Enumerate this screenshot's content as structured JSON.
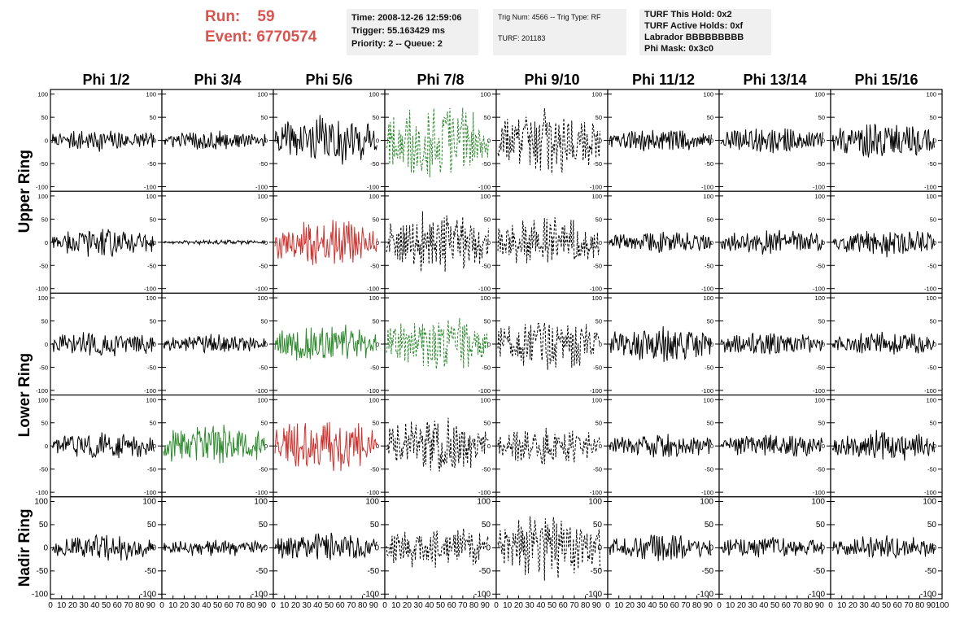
{
  "header": {
    "run_label": "Run:",
    "run_value": "59",
    "event_label": "Event:",
    "event_value": "6770574",
    "time": "Time: 2008-12-26 12:59:06",
    "trigger": "Trigger: 55.163429 ms",
    "priority": "Priority: 2 -- Queue: 2",
    "trig_num": "Trig Num: 4566 -- Trig Type: RF",
    "turf": "TURF: 201183",
    "turf_this_hold": "TURF This Hold: 0x2",
    "turf_active_holds": "TURF Active Holds: 0xf",
    "labrador": "Labrador BBBBBBBBB",
    "phi_mask": "Phi Mask: 0x3c0"
  },
  "chart_data": {
    "type": "line",
    "columns": [
      "Phi 1/2",
      "Phi 3/4",
      "Phi 5/6",
      "Phi 7/8",
      "Phi 9/10",
      "Phi 11/12",
      "Phi 13/14",
      "Phi 15/16"
    ],
    "row_groups": [
      "Upper Ring",
      "Lower Ring",
      "Nadir Ring"
    ],
    "rows": 5,
    "ylim": [
      -110,
      110
    ],
    "yticks": [
      "100",
      "50",
      "0",
      "-50",
      "-100"
    ],
    "xlim": [
      0,
      100
    ],
    "xticks": [
      "0",
      "10",
      "20",
      "30",
      "40",
      "50",
      "60",
      "70",
      "80",
      "90",
      "100"
    ],
    "grid": false,
    "colors": {
      "triggered": "#2b8a2b",
      "highlight": "#d0312d",
      "normal": "#000000"
    },
    "panels": [
      [
        {
          "a": 18,
          "c": "black",
          "d": false
        },
        {
          "a": 16,
          "c": "black",
          "d": false
        },
        {
          "a": 40,
          "c": "black",
          "d": false
        },
        {
          "a": 60,
          "c": "green",
          "d": true
        },
        {
          "a": 55,
          "c": "black",
          "d": true
        },
        {
          "a": 18,
          "c": "black",
          "d": false
        },
        {
          "a": 22,
          "c": "black",
          "d": false
        },
        {
          "a": 30,
          "c": "black",
          "d": false
        }
      ],
      [
        {
          "a": 25,
          "c": "black",
          "d": false
        },
        {
          "a": 4,
          "c": "black",
          "d": false
        },
        {
          "a": 40,
          "c": "red",
          "d": false
        },
        {
          "a": 50,
          "c": "black",
          "d": true
        },
        {
          "a": 40,
          "c": "black",
          "d": true
        },
        {
          "a": 18,
          "c": "black",
          "d": false
        },
        {
          "a": 20,
          "c": "black",
          "d": false
        },
        {
          "a": 24,
          "c": "black",
          "d": false
        }
      ],
      [
        {
          "a": 22,
          "c": "black",
          "d": false
        },
        {
          "a": 16,
          "c": "black",
          "d": false
        },
        {
          "a": 32,
          "c": "green",
          "d": false
        },
        {
          "a": 45,
          "c": "green",
          "d": true
        },
        {
          "a": 40,
          "c": "black",
          "d": true
        },
        {
          "a": 30,
          "c": "black",
          "d": false
        },
        {
          "a": 20,
          "c": "black",
          "d": false
        },
        {
          "a": 20,
          "c": "black",
          "d": false
        }
      ],
      [
        {
          "a": 22,
          "c": "black",
          "d": false
        },
        {
          "a": 35,
          "c": "green",
          "d": false
        },
        {
          "a": 45,
          "c": "red",
          "d": false
        },
        {
          "a": 45,
          "c": "black",
          "d": true
        },
        {
          "a": 30,
          "c": "black",
          "d": true
        },
        {
          "a": 20,
          "c": "black",
          "d": false
        },
        {
          "a": 20,
          "c": "black",
          "d": false
        },
        {
          "a": 25,
          "c": "black",
          "d": false
        }
      ],
      [
        {
          "a": 22,
          "c": "black",
          "d": false
        },
        {
          "a": 14,
          "c": "black",
          "d": false
        },
        {
          "a": 25,
          "c": "black",
          "d": false
        },
        {
          "a": 35,
          "c": "black",
          "d": true
        },
        {
          "a": 55,
          "c": "black",
          "d": true
        },
        {
          "a": 22,
          "c": "black",
          "d": false
        },
        {
          "a": 18,
          "c": "black",
          "d": false
        },
        {
          "a": 20,
          "c": "black",
          "d": false
        }
      ]
    ]
  }
}
